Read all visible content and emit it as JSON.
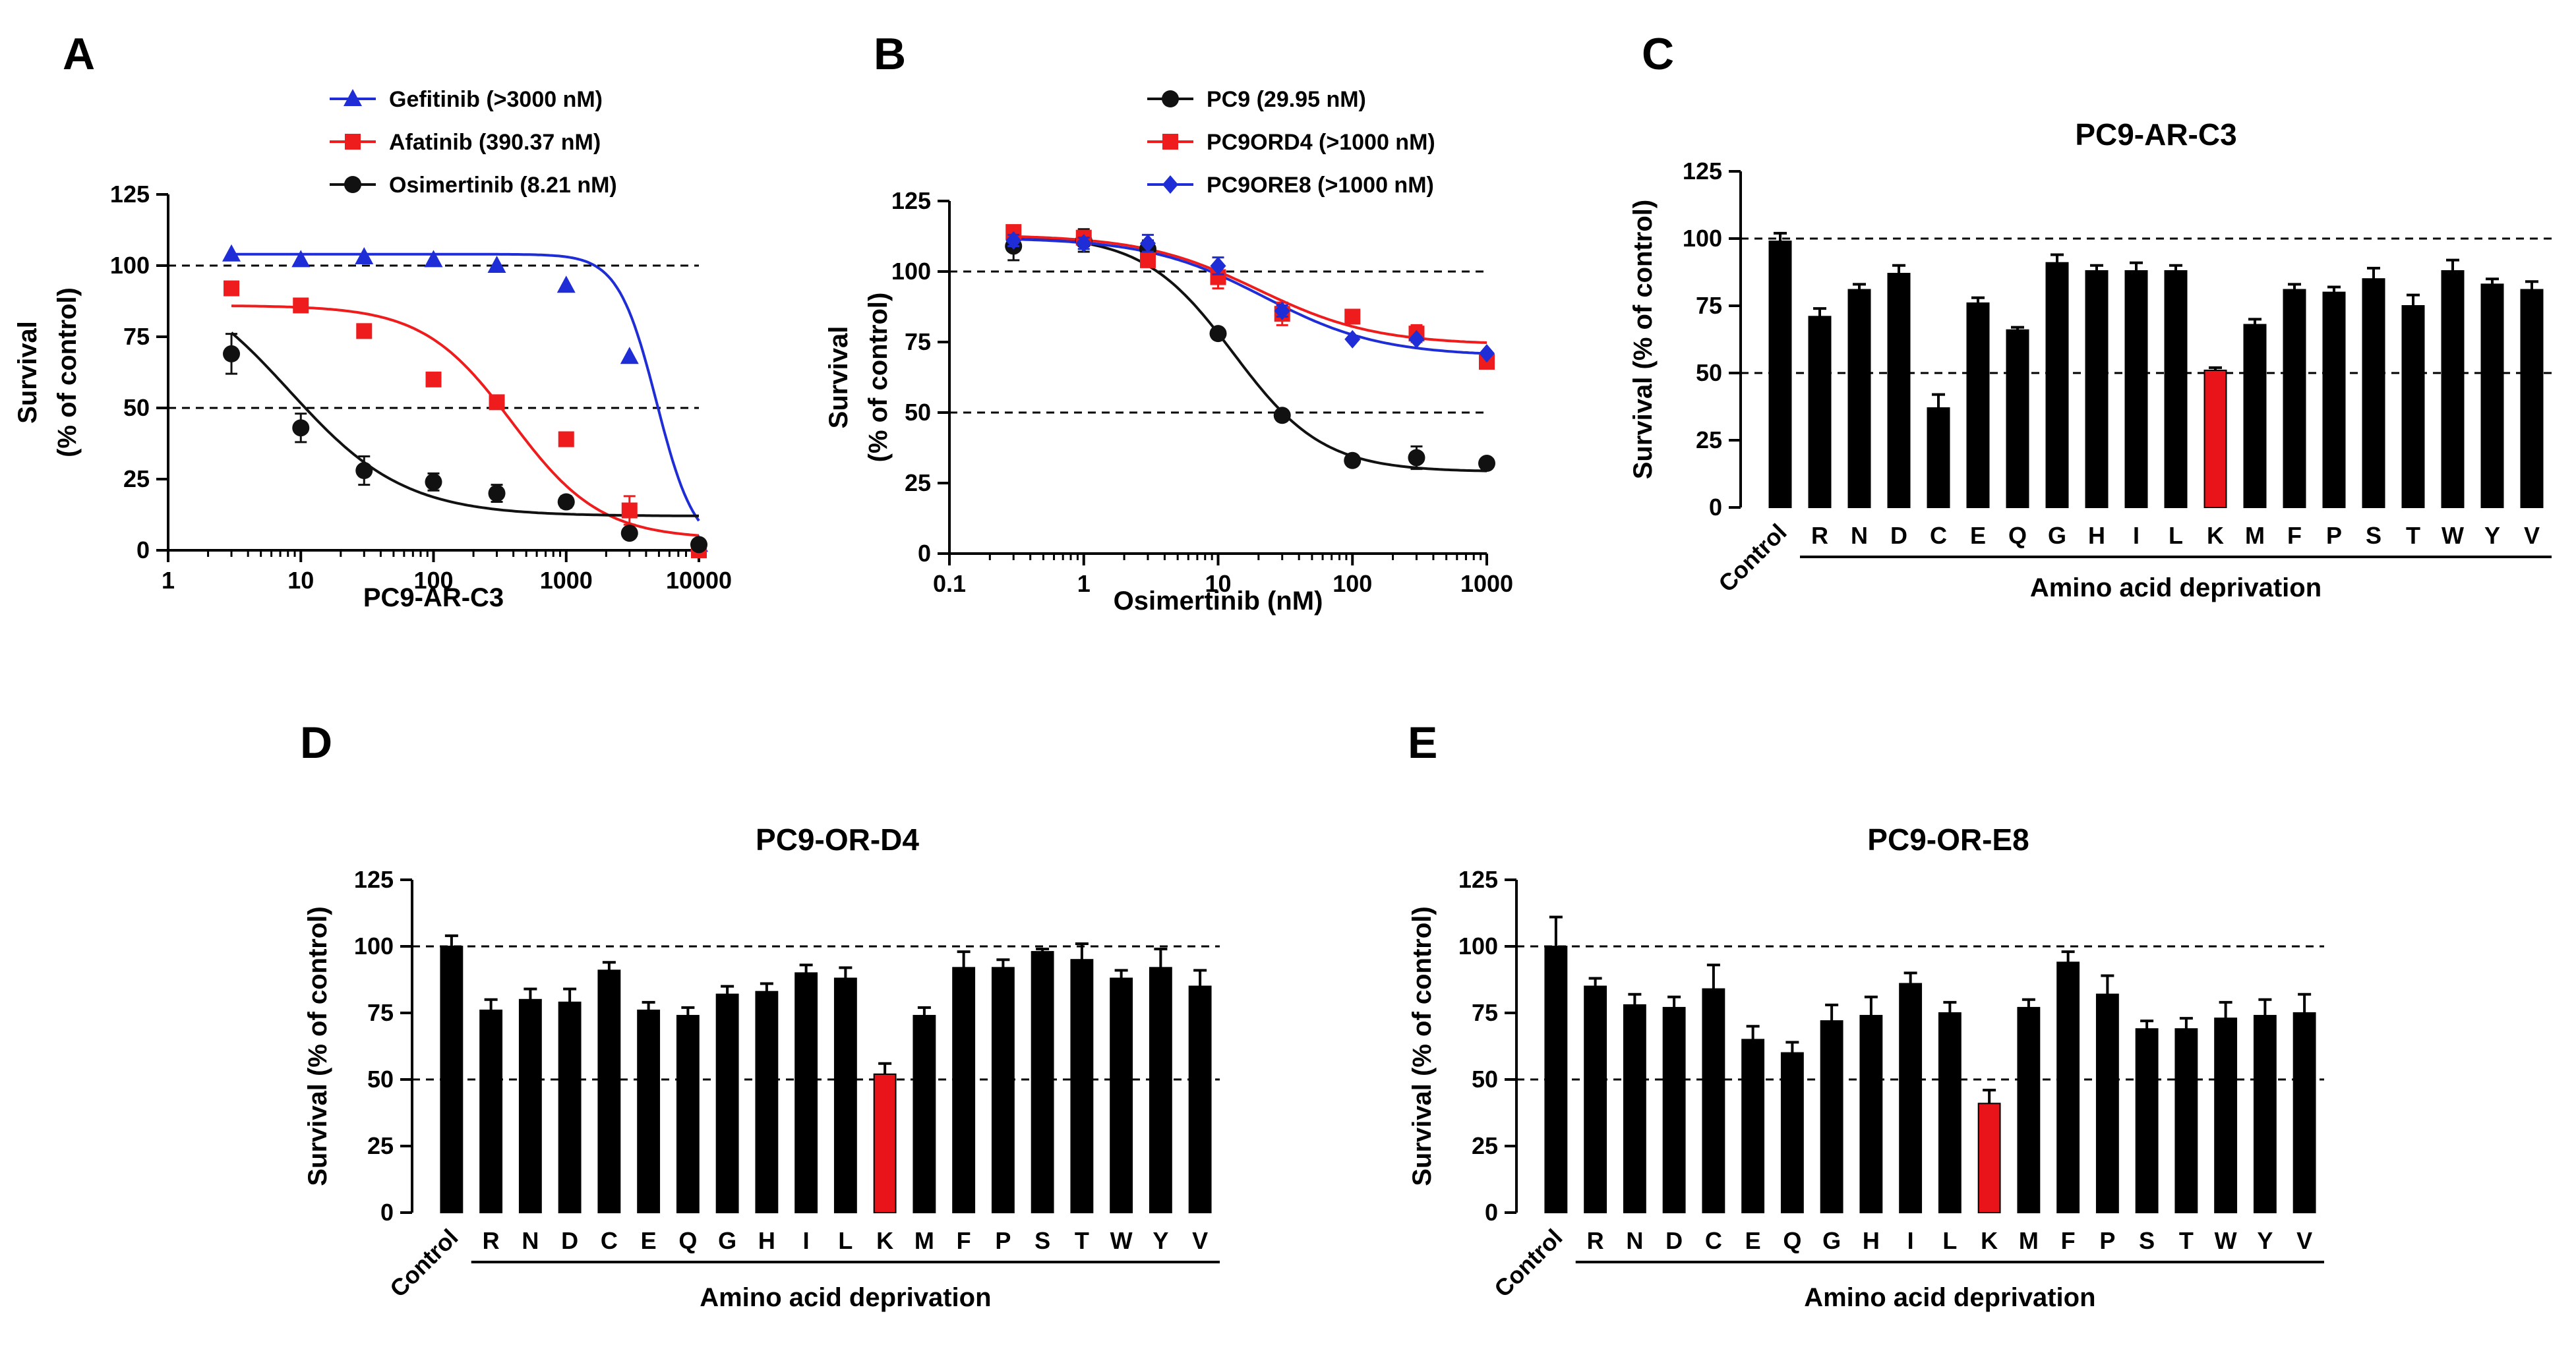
{
  "chart_data": [
    {
      "panel": "A",
      "type": "scatter",
      "title": "",
      "xlabel": "PC9-AR-C3",
      "ylabel": "Survival",
      "ylabel2": "(% of control)",
      "xscale": "log",
      "xlim": [
        1,
        10000
      ],
      "ylim": [
        0,
        125
      ],
      "xticks": [
        1,
        10,
        100,
        1000,
        10000
      ],
      "xtick_labels": [
        "1",
        "10",
        "100",
        "1000",
        "10000"
      ],
      "yticks": [
        0,
        25,
        50,
        75,
        100,
        125
      ],
      "ytick_labels": [
        "0",
        "25",
        "50",
        "75",
        "100",
        "125"
      ],
      "reference_lines": [
        100,
        50
      ],
      "legend_position": "top-right",
      "x": [
        3,
        10,
        30,
        100,
        300,
        1000,
        3000,
        10000
      ],
      "series": [
        {
          "name": "Gefitinib (>3000 nM)",
          "color": "#1f2dd6",
          "marker": "triangle",
          "values": [
            104,
            102,
            103,
            102,
            100,
            93,
            68,
            2
          ],
          "errors": [
            1,
            1,
            1,
            1,
            1,
            1,
            1,
            1
          ],
          "fit": {
            "top": 104,
            "bottom": 0,
            "ic50": 4800,
            "hill": 3
          }
        },
        {
          "name": "Afatinib (390.37 nM)",
          "color": "#ee1c1c",
          "marker": "square",
          "values": [
            92,
            86,
            77,
            60,
            52,
            39,
            14,
            0
          ],
          "errors": [
            1,
            1,
            1,
            1,
            1,
            1,
            5,
            1
          ],
          "fit": {
            "top": 86,
            "bottom": 4,
            "ic50": 390.37,
            "hill": 1.3
          }
        },
        {
          "name": "Osimertinib (8.21 nM)",
          "color": "#111111",
          "marker": "circle",
          "values": [
            69,
            43,
            28,
            24,
            20,
            17,
            6,
            2
          ],
          "errors": [
            7,
            5,
            5,
            3,
            3,
            2,
            1,
            1
          ],
          "fit": {
            "top": 100,
            "bottom": 12,
            "ic50": 8.21,
            "hill": 1
          }
        }
      ]
    },
    {
      "panel": "B",
      "type": "scatter",
      "title": "",
      "xlabel": "Osimertinib (nM)",
      "ylabel": "Survival",
      "ylabel2": "(% of control)",
      "xscale": "log",
      "xlim": [
        0.1,
        1000
      ],
      "ylim": [
        0,
        125
      ],
      "xticks": [
        0.1,
        1,
        10,
        100,
        1000
      ],
      "xtick_labels": [
        "0.1",
        "1",
        "10",
        "100",
        "1000"
      ],
      "yticks": [
        0,
        25,
        50,
        75,
        100,
        125
      ],
      "ytick_labels": [
        "0",
        "25",
        "50",
        "75",
        "100",
        "125"
      ],
      "reference_lines": [
        100,
        50
      ],
      "legend_position": "top-right",
      "x": [
        0.3,
        1,
        3,
        10,
        30,
        100,
        300,
        1000
      ],
      "series": [
        {
          "name": "PC9 (29.95 nM)",
          "color": "#111111",
          "marker": "circle",
          "values": [
            109,
            111,
            108,
            78,
            49,
            33,
            34,
            32
          ],
          "errors": [
            5,
            4,
            3,
            1,
            1,
            1,
            4,
            1
          ],
          "fit": {
            "top": 113,
            "bottom": 29,
            "ic50": 13,
            "hill": 1.3
          }
        },
        {
          "name": "PC9ORD4 (>1000 nM)",
          "color": "#ee1c1c",
          "marker": "square",
          "values": [
            114,
            112,
            104,
            98,
            85,
            84,
            78,
            68
          ],
          "errors": [
            2,
            2,
            2,
            4,
            4,
            1,
            3,
            1
          ],
          "fit": {
            "top": 113,
            "bottom": 74,
            "ic50": 20,
            "hill": 1
          }
        },
        {
          "name": "PC9ORE8 (>1000 nM)",
          "color": "#1f2dd6",
          "marker": "diamond",
          "values": [
            111,
            110,
            110,
            102,
            86,
            76,
            76,
            71
          ],
          "errors": [
            2,
            2,
            3,
            3,
            2,
            1,
            1,
            1
          ],
          "fit": {
            "top": 112,
            "bottom": 70,
            "ic50": 22,
            "hill": 1
          }
        }
      ]
    },
    {
      "panel": "C",
      "type": "bar",
      "title": "PC9-AR-C3",
      "ylabel": "Survival (% of control)",
      "group_label": "Amino acid deprivation",
      "ylim": [
        0,
        125
      ],
      "yticks": [
        0,
        25,
        50,
        75,
        100,
        125
      ],
      "ytick_labels": [
        "0",
        "25",
        "50",
        "75",
        "100",
        "125"
      ],
      "reference_lines": [
        100,
        50
      ],
      "highlight": "K",
      "highlight_color": "#e8141a",
      "categories": [
        "Control",
        "R",
        "N",
        "D",
        "C",
        "E",
        "Q",
        "G",
        "H",
        "I",
        "L",
        "K",
        "M",
        "F",
        "P",
        "S",
        "T",
        "W",
        "Y",
        "V"
      ],
      "values": [
        99,
        71,
        81,
        87,
        37,
        76,
        66,
        91,
        88,
        88,
        88,
        51,
        68,
        81,
        80,
        85,
        75,
        88,
        83,
        81
      ],
      "errors": [
        3,
        3,
        2,
        3,
        5,
        2,
        1,
        3,
        2,
        3,
        2,
        1,
        2,
        2,
        2,
        4,
        4,
        4,
        2,
        3
      ]
    },
    {
      "panel": "D",
      "type": "bar",
      "title": "PC9-OR-D4",
      "ylabel": "Survival (% of control)",
      "group_label": "Amino acid deprivation",
      "ylim": [
        0,
        125
      ],
      "yticks": [
        0,
        25,
        50,
        75,
        100,
        125
      ],
      "ytick_labels": [
        "0",
        "25",
        "50",
        "75",
        "100",
        "125"
      ],
      "reference_lines": [
        100,
        50
      ],
      "highlight": "K",
      "highlight_color": "#e8141a",
      "categories": [
        "Control",
        "R",
        "N",
        "D",
        "C",
        "E",
        "Q",
        "G",
        "H",
        "I",
        "L",
        "K",
        "M",
        "F",
        "P",
        "S",
        "T",
        "W",
        "Y",
        "V"
      ],
      "values": [
        100,
        76,
        80,
        79,
        91,
        76,
        74,
        82,
        83,
        90,
        88,
        52,
        74,
        92,
        92,
        98,
        95,
        88,
        92,
        85
      ],
      "errors": [
        4,
        4,
        4,
        5,
        3,
        3,
        3,
        3,
        3,
        3,
        4,
        4,
        3,
        6,
        3,
        1,
        6,
        3,
        7,
        6
      ]
    },
    {
      "panel": "E",
      "type": "bar",
      "title": "PC9-OR-E8",
      "ylabel": "Survival (% of control)",
      "group_label": "Amino acid deprivation",
      "ylim": [
        0,
        125
      ],
      "yticks": [
        0,
        25,
        50,
        75,
        100,
        125
      ],
      "ytick_labels": [
        "0",
        "25",
        "50",
        "75",
        "100",
        "125"
      ],
      "reference_lines": [
        100,
        50
      ],
      "highlight": "K",
      "highlight_color": "#e8141a",
      "categories": [
        "Control",
        "R",
        "N",
        "D",
        "C",
        "E",
        "Q",
        "G",
        "H",
        "I",
        "L",
        "K",
        "M",
        "F",
        "P",
        "S",
        "T",
        "W",
        "Y",
        "V"
      ],
      "values": [
        100,
        85,
        78,
        77,
        84,
        65,
        60,
        72,
        74,
        86,
        75,
        41,
        77,
        94,
        82,
        69,
        69,
        73,
        74,
        75
      ],
      "errors": [
        11,
        3,
        4,
        4,
        9,
        5,
        4,
        6,
        7,
        4,
        4,
        5,
        3,
        4,
        7,
        3,
        4,
        6,
        6,
        7
      ]
    }
  ]
}
